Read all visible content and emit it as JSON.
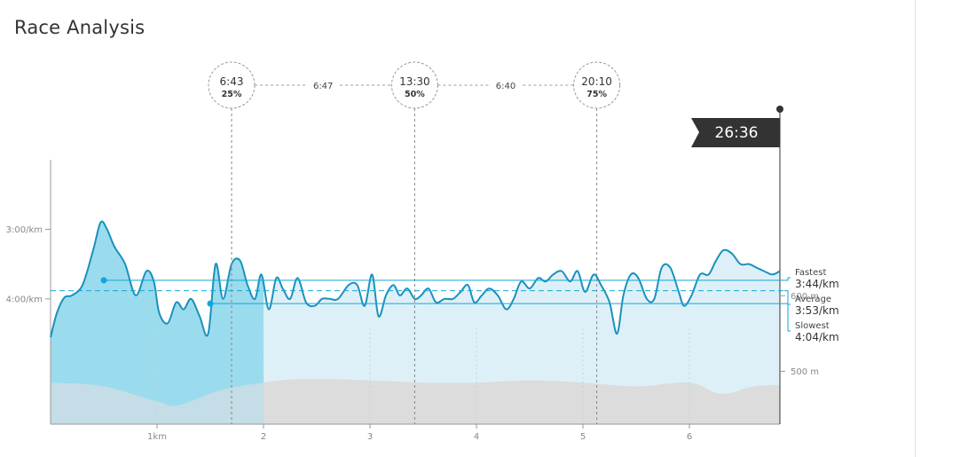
{
  "page": {
    "title": "Race Analysis"
  },
  "finish": {
    "time": "26:36"
  },
  "checkpoints": [
    {
      "time": "6:43",
      "pct": "25%",
      "km": 1.7
    },
    {
      "time": "13:30",
      "pct": "50%",
      "km": 3.42
    },
    {
      "time": "20:10",
      "pct": "75%",
      "km": 5.13
    }
  ],
  "splits": [
    "6:47",
    "6:40"
  ],
  "stats": [
    {
      "label": "Fastest",
      "value": "3:44/km",
      "pace": 3.733
    },
    {
      "label": "Average",
      "value": "3:53/km",
      "pace": 3.883
    },
    {
      "label": "Slowest",
      "value": "4:04/km",
      "pace": 4.067
    }
  ],
  "colors": {
    "line": "#1a91bd",
    "area_dark": "#9adced",
    "area_light": "#def0f7",
    "elevation": "#dcdcdc",
    "dark": "#333333"
  },
  "chart_data": {
    "type": "area",
    "title": "Race Analysis",
    "xlabel": "",
    "ylabel": "",
    "x_ticks": [
      {
        "value": 1,
        "label": "1km"
      },
      {
        "value": 2,
        "label": "2"
      },
      {
        "value": 3,
        "label": "3"
      },
      {
        "value": 4,
        "label": "4"
      },
      {
        "value": 5,
        "label": "5"
      },
      {
        "value": 6,
        "label": "6"
      }
    ],
    "y_ticks": [
      {
        "value": 3.0,
        "label": "3:00/km"
      },
      {
        "value": 4.0,
        "label": "4:00/km"
      }
    ],
    "elevation_ticks": [
      {
        "value": 600,
        "label": "600 m"
      },
      {
        "value": 500,
        "label": "500 m"
      }
    ],
    "xlim": [
      0,
      6.85
    ],
    "pace_ylim": [
      5.8,
      2.0
    ],
    "elev_ylim": [
      430,
      780
    ],
    "highlight_end_km": 2.0,
    "pace_series": {
      "name": "Pace",
      "x": [
        0,
        0.06,
        0.13,
        0.2,
        0.3,
        0.4,
        0.47,
        0.53,
        0.6,
        0.7,
        0.8,
        0.9,
        0.97,
        1.02,
        1.1,
        1.18,
        1.25,
        1.32,
        1.4,
        1.48,
        1.55,
        1.62,
        1.7,
        1.78,
        1.85,
        1.92,
        1.98,
        2.05,
        2.12,
        2.18,
        2.25,
        2.32,
        2.4,
        2.48,
        2.55,
        2.62,
        2.7,
        2.8,
        2.88,
        2.95,
        3.02,
        3.08,
        3.15,
        3.22,
        3.28,
        3.35,
        3.42,
        3.48,
        3.55,
        3.62,
        3.7,
        3.78,
        3.85,
        3.92,
        3.98,
        4.05,
        4.12,
        4.2,
        4.28,
        4.35,
        4.42,
        4.5,
        4.58,
        4.65,
        4.72,
        4.8,
        4.88,
        4.95,
        5.02,
        5.1,
        5.17,
        5.25,
        5.32,
        5.38,
        5.45,
        5.52,
        5.6,
        5.67,
        5.74,
        5.82,
        5.9,
        5.95,
        6.02,
        6.1,
        6.18,
        6.25,
        6.32,
        6.4,
        6.48,
        6.56,
        6.63,
        6.7,
        6.78,
        6.85
      ],
      "y": [
        4.55,
        4.2,
        3.98,
        3.95,
        3.8,
        3.3,
        2.9,
        3.0,
        3.25,
        3.5,
        3.95,
        3.6,
        3.75,
        4.2,
        4.35,
        4.05,
        4.15,
        4.0,
        4.25,
        4.5,
        3.5,
        4.0,
        3.5,
        3.45,
        3.8,
        4.0,
        3.65,
        4.15,
        3.7,
        3.85,
        4.0,
        3.7,
        4.05,
        4.1,
        4.0,
        4.0,
        4.0,
        3.8,
        3.8,
        4.1,
        3.65,
        4.25,
        3.95,
        3.8,
        3.95,
        3.85,
        4.0,
        3.95,
        3.85,
        4.05,
        4.0,
        4.0,
        3.9,
        3.8,
        4.05,
        3.95,
        3.85,
        3.95,
        4.15,
        4.0,
        3.75,
        3.85,
        3.7,
        3.75,
        3.65,
        3.6,
        3.75,
        3.6,
        3.9,
        3.65,
        3.8,
        4.05,
        4.5,
        3.95,
        3.65,
        3.7,
        4.0,
        4.0,
        3.55,
        3.55,
        3.9,
        4.1,
        3.95,
        3.65,
        3.65,
        3.45,
        3.3,
        3.35,
        3.5,
        3.5,
        3.55,
        3.6,
        3.65,
        3.6
      ]
    },
    "elevation_series": {
      "name": "Elevation",
      "x": [
        0,
        0.5,
        1.0,
        1.2,
        1.6,
        2.0,
        2.4,
        3.0,
        3.5,
        4.0,
        4.5,
        5.0,
        5.5,
        6.0,
        6.3,
        6.6,
        6.85
      ],
      "y": [
        485,
        480,
        460,
        455,
        475,
        485,
        490,
        488,
        485,
        485,
        488,
        485,
        480,
        485,
        470,
        480,
        482
      ]
    }
  }
}
